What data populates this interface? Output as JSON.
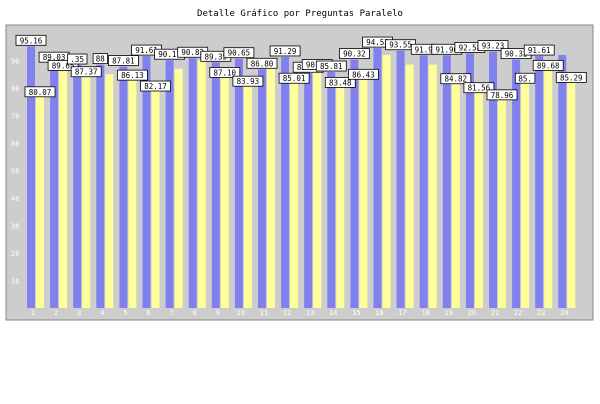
{
  "chart_data": {
    "type": "bar",
    "title": "Detalle Gráfico por Preguntas Paralelo",
    "xlabel": "",
    "ylabel": "",
    "ylim": [
      0,
      100
    ],
    "yticks": [
      10,
      20,
      30,
      40,
      50,
      60,
      70,
      80,
      90
    ],
    "grid": false,
    "legend": "none",
    "categories": [
      "1",
      "2",
      "3",
      "4",
      "5",
      "6",
      "7",
      "8",
      "9",
      "10",
      "11",
      "12",
      "13",
      "14",
      "15",
      "16",
      "17",
      "18",
      "19",
      "20",
      "21",
      "22",
      "23",
      "24"
    ],
    "series": [
      {
        "color": "#8080ee",
        "values": [
          95.16,
          89.03,
          88.35,
          88.5,
          87.81,
          91.61,
          90.11,
          90.82,
          89.35,
          90.65,
          86.8,
          91.29,
          85.37,
          85.81,
          90.32,
          94.52,
          93.55,
          91.9,
          91.9,
          92.58,
          93.23,
          90.32,
          91.61,
          92.0
        ],
        "labels": [
          "95.16",
          "89.03",
          ".35",
          "88",
          "87.81",
          "91.61",
          "90.11",
          "90.82",
          "89.35",
          "90.65",
          "86.80",
          "91.29",
          "85.37",
          "85.81",
          "90.32",
          "94.52",
          "93.55",
          "91.9",
          "91.90",
          "92.58",
          "93.23",
          "90.32",
          "91.61",
          ""
        ]
      },
      {
        "color": "#ffff99",
        "values": [
          80.07,
          89.65,
          87.37,
          85.0,
          86.13,
          82.17,
          87.0,
          90.0,
          87.1,
          83.93,
          88.5,
          85.01,
          90.0,
          83.48,
          86.43,
          92.0,
          88.5,
          88.5,
          84.82,
          81.56,
          78.96,
          85.0,
          89.68,
          85.29
        ],
        "labels": [
          "80.07",
          "89.65",
          "87.37",
          "",
          "86.13",
          "82.17",
          "",
          "",
          "87.10",
          "83.93",
          "",
          "85.01",
          "90.00",
          "83.48",
          "86.43",
          "",
          "",
          "",
          "84.82",
          "81.56",
          "78.96",
          "85.",
          "89.68",
          "85.29"
        ]
      }
    ]
  }
}
